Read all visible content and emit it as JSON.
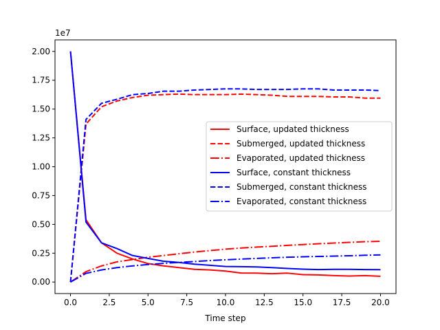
{
  "chart_data": {
    "type": "line",
    "title": "",
    "xlabel": "Time step",
    "ylabel": "",
    "y_scale_label": "1e7",
    "xlim": [
      -1,
      21
    ],
    "ylim": [
      -0.1,
      2.1
    ],
    "x_ticks": [
      0,
      2.5,
      5,
      7.5,
      10,
      12.5,
      15,
      17.5,
      20
    ],
    "x_tick_labels": [
      "0.0",
      "2.5",
      "5.0",
      "7.5",
      "10.0",
      "12.5",
      "15.0",
      "17.5",
      "20.0"
    ],
    "y_ticks": [
      0,
      0.25,
      0.5,
      0.75,
      1.0,
      1.25,
      1.5,
      1.75,
      2.0
    ],
    "y_tick_labels": [
      "0.00",
      "0.25",
      "0.50",
      "0.75",
      "1.00",
      "1.25",
      "1.50",
      "1.75",
      "2.00"
    ],
    "grid": false,
    "legend_placement": "center-right",
    "x": [
      0,
      1,
      2,
      3,
      4,
      5,
      6,
      7,
      8,
      9,
      10,
      11,
      12,
      13,
      14,
      15,
      16,
      17,
      18,
      19,
      20
    ],
    "series": [
      {
        "name": "Surface, updated thickness",
        "color": "#ff0000",
        "dash": "solid",
        "values": [
          2.0,
          0.54,
          0.34,
          0.25,
          0.2,
          0.16,
          0.14,
          0.125,
          0.11,
          0.105,
          0.095,
          0.078,
          0.077,
          0.072,
          0.077,
          0.064,
          0.062,
          0.056,
          0.052,
          0.056,
          0.05
        ]
      },
      {
        "name": "Submerged, updated thickness",
        "color": "#ff0000",
        "dash": "dashed",
        "values": [
          0.0,
          1.37,
          1.52,
          1.57,
          1.6,
          1.62,
          1.625,
          1.63,
          1.625,
          1.625,
          1.625,
          1.63,
          1.625,
          1.62,
          1.61,
          1.61,
          1.61,
          1.605,
          1.605,
          1.595,
          1.595
        ]
      },
      {
        "name": "Evaporated, updated thickness",
        "color": "#ff0000",
        "dash": "dashdot",
        "values": [
          0.0,
          0.09,
          0.14,
          0.175,
          0.195,
          0.215,
          0.23,
          0.245,
          0.26,
          0.273,
          0.285,
          0.295,
          0.303,
          0.31,
          0.318,
          0.325,
          0.332,
          0.338,
          0.344,
          0.35,
          0.353
        ]
      },
      {
        "name": "Surface, constant thickness",
        "color": "#0000ff",
        "dash": "solid",
        "values": [
          2.0,
          0.52,
          0.34,
          0.29,
          0.23,
          0.205,
          0.18,
          0.17,
          0.155,
          0.145,
          0.135,
          0.133,
          0.131,
          0.125,
          0.118,
          0.112,
          0.108,
          0.11,
          0.11,
          0.108,
          0.107
        ]
      },
      {
        "name": "Submerged, constant thickness",
        "color": "#0000ff",
        "dash": "dashed",
        "values": [
          0.0,
          1.41,
          1.55,
          1.585,
          1.625,
          1.635,
          1.655,
          1.655,
          1.665,
          1.67,
          1.675,
          1.675,
          1.67,
          1.67,
          1.67,
          1.675,
          1.675,
          1.665,
          1.665,
          1.665,
          1.66
        ]
      },
      {
        "name": "Evaporated, constant thickness",
        "color": "#0000ff",
        "dash": "dashdot",
        "values": [
          0.0,
          0.075,
          0.105,
          0.125,
          0.14,
          0.152,
          0.162,
          0.17,
          0.178,
          0.186,
          0.193,
          0.199,
          0.205,
          0.21,
          0.215,
          0.219,
          0.222,
          0.225,
          0.228,
          0.232,
          0.235
        ]
      }
    ]
  }
}
